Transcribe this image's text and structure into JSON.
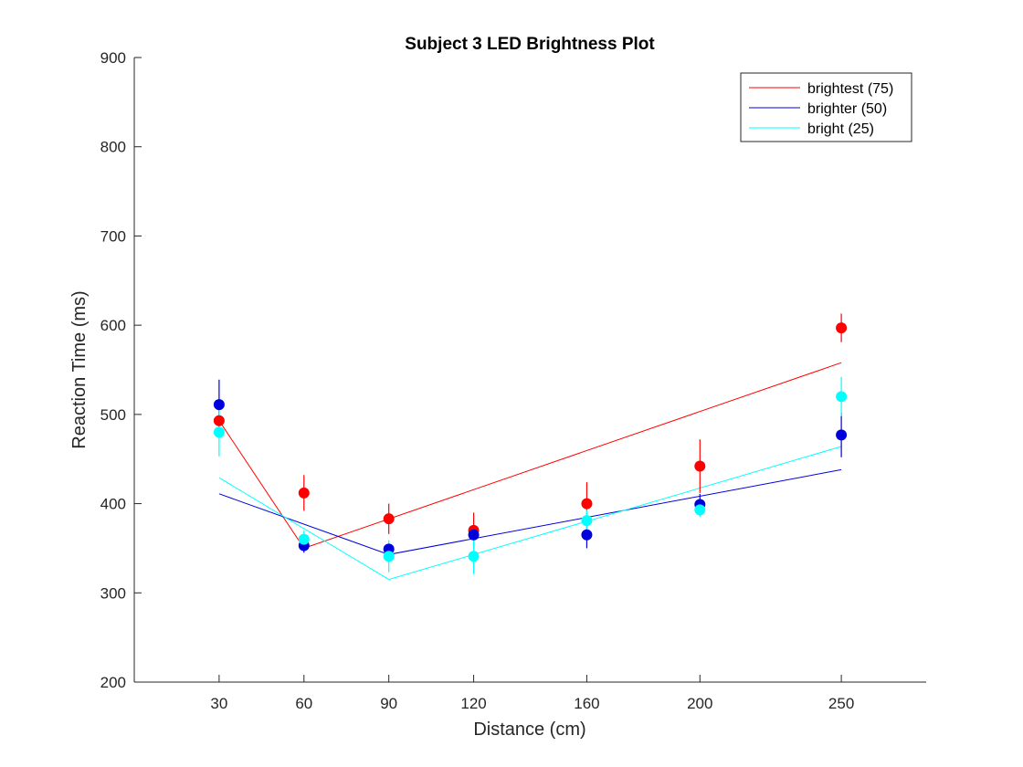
{
  "chart_data": {
    "type": "line",
    "title": "Subject 3 LED Brightness Plot",
    "xlabel": "Distance (cm)",
    "ylabel": "Reaction Time (ms)",
    "x": [
      30,
      60,
      90,
      120,
      160,
      200,
      250
    ],
    "x_tick_labels": [
      "30",
      "60",
      "90",
      "120",
      "160",
      "200",
      "250"
    ],
    "xlim": [
      0,
      280
    ],
    "ylim": [
      200,
      900
    ],
    "y_ticks": [
      200,
      300,
      400,
      500,
      600,
      700,
      800,
      900
    ],
    "y_tick_labels": [
      "200",
      "300",
      "400",
      "500",
      "600",
      "700",
      "800",
      "900"
    ],
    "grid": false,
    "legend_position": "top-right",
    "series": [
      {
        "name": "brightest (75)",
        "color": "#ff0000",
        "points": [
          493,
          412,
          383,
          370,
          400,
          442,
          597
        ],
        "errors": [
          15,
          20,
          17,
          20,
          24,
          30,
          16
        ],
        "fit_x": [
          30,
          60,
          250
        ],
        "fit_y": [
          493,
          350,
          558
        ]
      },
      {
        "name": "brighter (50)",
        "color": "#0000dd",
        "points": [
          511,
          353,
          349,
          365,
          365,
          399,
          477
        ],
        "errors": [
          28,
          8,
          6,
          6,
          15,
          12,
          25
        ],
        "fit_x": [
          30,
          90,
          250
        ],
        "fit_y": [
          411,
          343,
          438
        ]
      },
      {
        "name": "bright (25)",
        "color": "#00ffff",
        "points": [
          480,
          360,
          341,
          341,
          381,
          393,
          520
        ],
        "errors": [
          27,
          10,
          18,
          20,
          12,
          8,
          22
        ],
        "fit_x": [
          30,
          90,
          250
        ],
        "fit_y": [
          429,
          315,
          464
        ]
      }
    ]
  }
}
